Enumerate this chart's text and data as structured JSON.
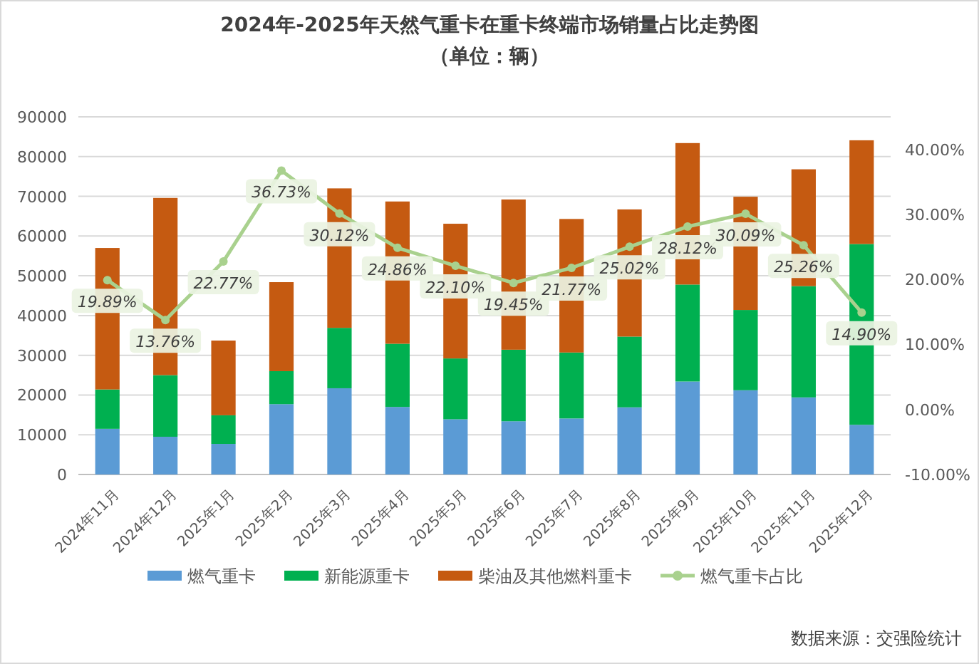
{
  "chart_data": {
    "type": "bar",
    "title": "2024年-2025年天然气重卡在重卡终端市场销量占比走势图",
    "subtitle": "（单位：辆）",
    "categories": [
      "2024年11月",
      "2024年12月",
      "2025年1月",
      "2025年2月",
      "2025年3月",
      "2025年4月",
      "2025年5月",
      "2025年6月",
      "2025年7月",
      "2025年8月",
      "2025年9月",
      "2025年10月",
      "2025年11月",
      "2025年12月"
    ],
    "stacked": true,
    "series": [
      {
        "name": "燃气重卡",
        "color": "#5b9bd5",
        "values": [
          11500,
          9500,
          7700,
          17700,
          21700,
          17000,
          13900,
          13400,
          14100,
          16900,
          23400,
          21200,
          19400,
          12500
        ]
      },
      {
        "name": "新能源重卡",
        "color": "#00b050",
        "values": [
          9900,
          15500,
          7200,
          8300,
          15200,
          15900,
          15300,
          18000,
          16600,
          17800,
          24400,
          20200,
          28000,
          45500
        ]
      },
      {
        "name": "柴油及其他燃料重卡",
        "color": "#c55a11",
        "values": [
          35600,
          44600,
          18800,
          22400,
          35100,
          35800,
          33900,
          37800,
          33600,
          32000,
          35600,
          28500,
          29400,
          26100
        ]
      },
      {
        "name": "燃气重卡占比",
        "type": "line",
        "axis": "y2",
        "color": "#a9d18e",
        "marker": "circle",
        "values": [
          19.89,
          13.76,
          22.77,
          36.73,
          30.12,
          24.86,
          22.1,
          19.45,
          21.77,
          25.02,
          28.12,
          30.09,
          25.26,
          14.9
        ],
        "value_labels": [
          "19.89%",
          "13.76%",
          "22.77%",
          "36.73%",
          "30.12%",
          "24.86%",
          "22.10%",
          "19.45%",
          "21.77%",
          "25.02%",
          "28.12%",
          "30.09%",
          "25.26%",
          "14.90%"
        ]
      }
    ],
    "ylim": [
      0,
      90000
    ],
    "yticks": [
      0,
      10000,
      20000,
      30000,
      40000,
      50000,
      60000,
      70000,
      80000,
      90000
    ],
    "y2lim": [
      -10,
      45
    ],
    "y2ticks": [
      {
        "value": -10,
        "label": "-10.00%"
      },
      {
        "value": 0,
        "label": "0.00%"
      },
      {
        "value": 10,
        "label": "10.00%"
      },
      {
        "value": 20,
        "label": "20.00%"
      },
      {
        "value": 30,
        "label": "30.00%"
      },
      {
        "value": 40,
        "label": "40.00%"
      }
    ],
    "grid": "y",
    "legend": "bottom",
    "annotations": [
      "数据来源：交强险统计"
    ]
  }
}
